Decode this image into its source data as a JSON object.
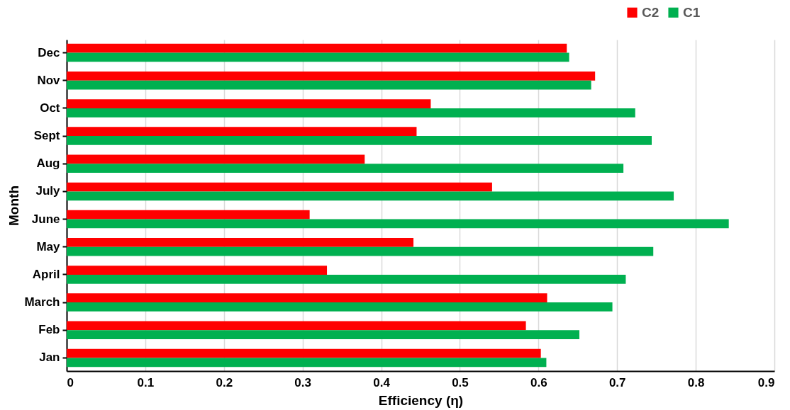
{
  "chart_data": {
    "type": "bar",
    "orientation": "horizontal",
    "xlabel": "Efficiency (η)",
    "ylabel": "Month",
    "categories": [
      "Dec",
      "Nov",
      "Oct",
      "Sept",
      "Aug",
      "July",
      "June",
      "May",
      "April",
      "March",
      "Feb",
      "Jan"
    ],
    "series": [
      {
        "name": "C2",
        "color": "#ff0000",
        "values": [
          0.636,
          0.672,
          0.463,
          0.445,
          0.379,
          0.541,
          0.309,
          0.441,
          0.331,
          0.611,
          0.584,
          0.603
        ]
      },
      {
        "name": "C1",
        "color": "#00b050",
        "values": [
          0.639,
          0.667,
          0.723,
          0.744,
          0.708,
          0.772,
          0.842,
          0.746,
          0.711,
          0.694,
          0.652,
          0.61
        ]
      }
    ],
    "xlim": [
      0,
      0.9
    ],
    "xticks": [
      0,
      0.1,
      0.2,
      0.3,
      0.4,
      0.5,
      0.6,
      0.7,
      0.8,
      0.9
    ],
    "grid": "x",
    "legend": "top right"
  }
}
